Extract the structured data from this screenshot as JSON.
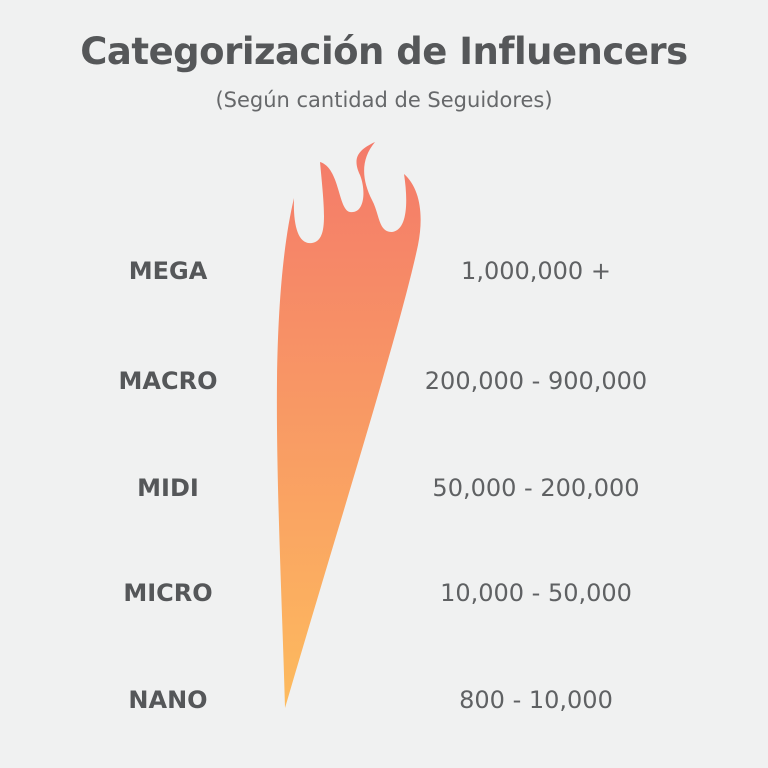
{
  "title": "Categorización de Influencers",
  "subtitle": "(Según cantidad de Seguidores)",
  "tiers": [
    {
      "name": "MEGA",
      "range": "1,000,000 +"
    },
    {
      "name": "MACRO",
      "range": "200,000 - 900,000"
    },
    {
      "name": "MIDI",
      "range": "50,000 - 200,000"
    },
    {
      "name": "MICRO",
      "range": "10,000 - 50,000"
    },
    {
      "name": "NANO",
      "range": "800 - 10,000"
    }
  ],
  "colors": {
    "flame_top": "#f47a6a",
    "flame_bottom": "#fdbb5e",
    "background": "#f0f1f1",
    "text": "#555759"
  },
  "icons": {
    "flame": "flame-icon"
  }
}
